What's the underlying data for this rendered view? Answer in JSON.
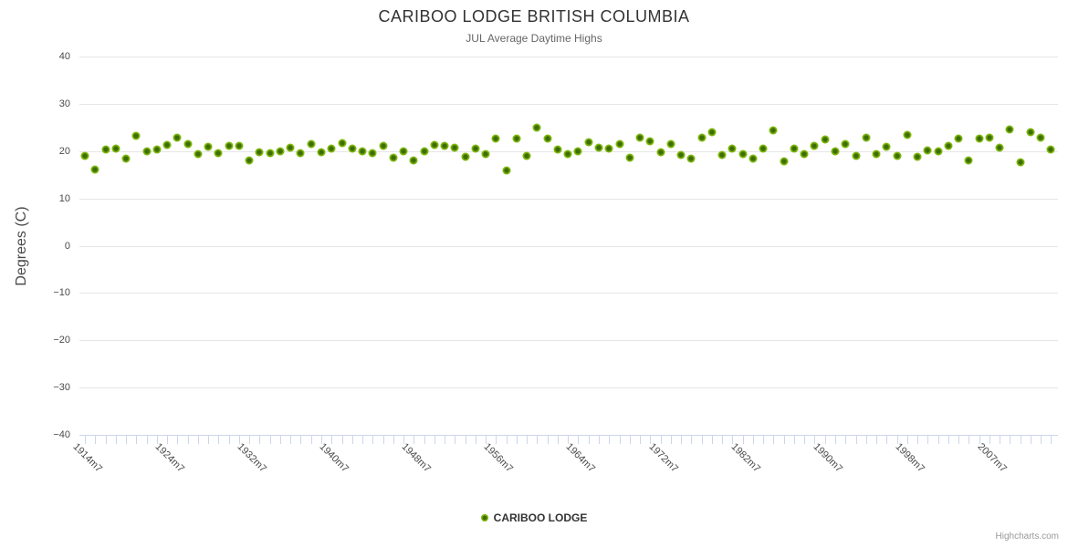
{
  "header": {
    "title": "CARIBOO LODGE BRITISH COLUMBIA",
    "subtitle": "JUL Average Daytime Highs"
  },
  "legend": {
    "label": "CARIBOO LODGE"
  },
  "credits": {
    "label": "Highcharts.com"
  },
  "colors": {
    "marker_ring": "#7cb507",
    "marker_core": "#3e6e05",
    "gridline": "#e6e6e6",
    "axis_line": "#ccd6eb",
    "title": "#333333",
    "subtitle": "#666666",
    "axis_labels": "#4a4a4a",
    "credits": "#999999"
  },
  "chart_data": {
    "type": "scatter",
    "title": "CARIBOO LODGE BRITISH COLUMBIA",
    "subtitle": "JUL Average Daytime Highs",
    "xlabel": "",
    "ylabel": "Degrees (C)",
    "ylim": [
      -40,
      40
    ],
    "ytick_step": 10,
    "ytick_labels": [
      "40",
      "30",
      "20",
      "10",
      "0",
      "−10",
      "−20",
      "−30",
      "−40"
    ],
    "ytick_values": [
      40,
      30,
      20,
      10,
      0,
      -10,
      -20,
      -30,
      -40
    ],
    "grid": true,
    "legend_position": "bottom-center",
    "xtick_labels": [
      {
        "index": 0,
        "label": "1914m7"
      },
      {
        "index": 8,
        "label": "1924m7"
      },
      {
        "index": 16,
        "label": "1932m7"
      },
      {
        "index": 24,
        "label": "1940m7"
      },
      {
        "index": 32,
        "label": "1948m7"
      },
      {
        "index": 40,
        "label": "1956m7"
      },
      {
        "index": 48,
        "label": "1964m7"
      },
      {
        "index": 56,
        "label": "1972m7"
      },
      {
        "index": 64,
        "label": "1982m7"
      },
      {
        "index": 72,
        "label": "1990m7"
      },
      {
        "index": 80,
        "label": "1998m7"
      },
      {
        "index": 88,
        "label": "2007m7"
      }
    ],
    "series": [
      {
        "name": "CARIBOO LODGE",
        "color": "#7cb507",
        "values": [
          19.0,
          16.1,
          20.4,
          20.5,
          18.5,
          23.2,
          20.0,
          20.4,
          21.3,
          22.9,
          21.5,
          19.3,
          21.0,
          19.5,
          21.2,
          21.2,
          18.0,
          19.8,
          19.6,
          19.9,
          20.8,
          19.6,
          21.4,
          19.7,
          20.5,
          21.6,
          20.6,
          20.0,
          19.6,
          21.2,
          18.6,
          20.0,
          18.1,
          19.9,
          21.3,
          21.2,
          20.8,
          18.7,
          20.5,
          19.4,
          22.6,
          15.9,
          22.6,
          18.9,
          25.0,
          22.6,
          20.4,
          19.3,
          19.9,
          21.8,
          20.8,
          20.5,
          21.5,
          18.6,
          22.8,
          22.1,
          19.7,
          21.5,
          19.2,
          18.4,
          22.9,
          24.0,
          19.2,
          20.6,
          19.4,
          18.4,
          20.6,
          24.4,
          17.8,
          20.6,
          19.4,
          21.2,
          22.4,
          19.9,
          21.5,
          18.9,
          22.9,
          19.4,
          21.0,
          18.9,
          23.4,
          18.7,
          20.2,
          20.0,
          21.2,
          22.6,
          18.1,
          22.6,
          22.8,
          20.8,
          24.5,
          17.7,
          24.0,
          22.8,
          20.3
        ]
      }
    ]
  }
}
